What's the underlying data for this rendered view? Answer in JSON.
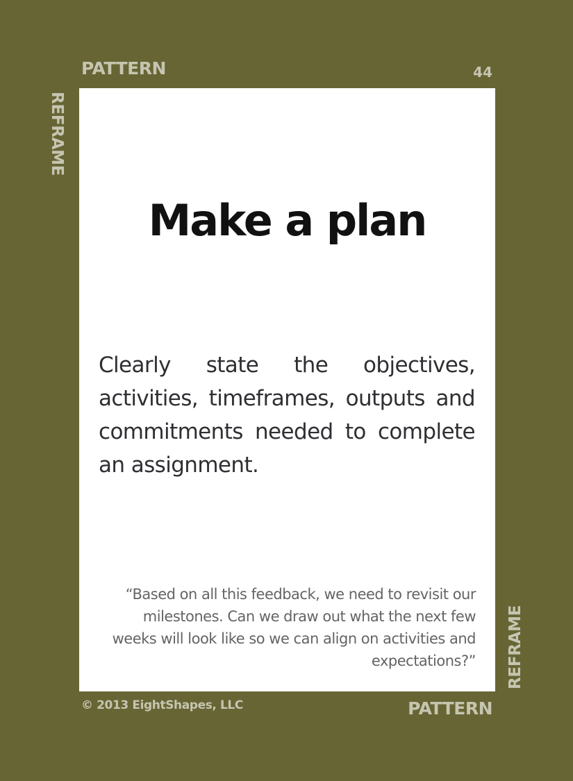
{
  "card": {
    "category": "PATTERN",
    "number": "44",
    "side_tag": "REFRAME",
    "title": "Make a plan",
    "definition": "Clearly state the objectives, activities, timeframes, outputs and commitments needed to complete an assignment.",
    "quote": "“Based on all this feedback, we need to revisit our milestones. Can we draw out what the next few weeks will look like so we can align on activities and expectations?”",
    "copyright": "© 2013 EightShapes, LLC",
    "bottom_category": "PATTERN"
  },
  "colors": {
    "frame": "#676534",
    "panel": "#ffffff",
    "label": "#c6c5b0",
    "title": "#111111",
    "body": "#2f2f33",
    "quote": "#646464"
  }
}
